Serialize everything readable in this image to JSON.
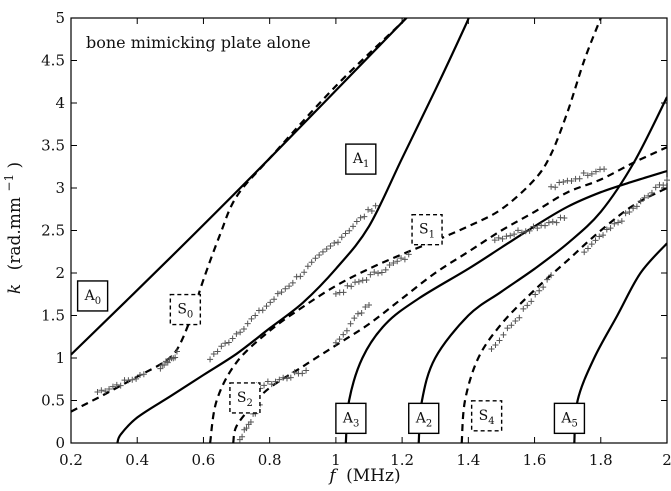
{
  "chart_data": {
    "type": "line",
    "title": "",
    "annotation": "bone mimicking plate alone",
    "xlabel": {
      "symbol": "f",
      "unit": "(MHz)"
    },
    "ylabel": {
      "symbol": "k",
      "unit": "(rad.mm",
      "exp": "−1",
      "close": ")"
    },
    "xlim": [
      0.2,
      2.0
    ],
    "ylim": [
      0,
      5
    ],
    "x_ticks": [
      "0.2",
      "0.4",
      "0.6",
      "0.8",
      "1",
      "1.2",
      "1.4",
      "1.6",
      "1.8",
      "2"
    ],
    "y_ticks": [
      "0",
      "0.5",
      "1",
      "1.5",
      "2",
      "2.5",
      "3",
      "3.5",
      "4",
      "4.5",
      "5"
    ],
    "grid": false,
    "series": [
      {
        "name": "A",
        "sub": "0",
        "style": "solid",
        "label_box": [
          0.22,
          1.73
        ],
        "points": [
          [
            0.2,
            1.04
          ],
          [
            0.5,
            2.18
          ],
          [
            0.8,
            3.35
          ],
          [
            1.2,
            4.95
          ],
          [
            1.21,
            5.0
          ]
        ]
      },
      {
        "name": "S",
        "sub": "0",
        "style": "dashed",
        "label_box": [
          0.5,
          1.57
        ],
        "points": [
          [
            0.2,
            0.37
          ],
          [
            0.3,
            0.57
          ],
          [
            0.4,
            0.78
          ],
          [
            0.48,
            0.95
          ],
          [
            0.52,
            1.1
          ],
          [
            0.56,
            1.45
          ],
          [
            0.6,
            1.92
          ],
          [
            0.65,
            2.45
          ],
          [
            0.7,
            2.9
          ],
          [
            0.8,
            3.35
          ],
          [
            1.0,
            4.2
          ],
          [
            1.2,
            4.95
          ],
          [
            1.21,
            5.0
          ]
        ]
      },
      {
        "name": "A",
        "sub": "1",
        "style": "solid",
        "label_box": [
          1.03,
          3.34
        ],
        "points": [
          [
            0.34,
            0.0
          ],
          [
            0.35,
            0.1
          ],
          [
            0.4,
            0.3
          ],
          [
            0.5,
            0.55
          ],
          [
            0.6,
            0.8
          ],
          [
            0.7,
            1.05
          ],
          [
            0.8,
            1.35
          ],
          [
            0.9,
            1.65
          ],
          [
            1.0,
            2.05
          ],
          [
            1.1,
            2.55
          ],
          [
            1.2,
            3.35
          ],
          [
            1.3,
            4.15
          ],
          [
            1.39,
            4.9
          ],
          [
            1.4,
            5.0
          ]
        ]
      },
      {
        "name": "S",
        "sub": "1",
        "style": "dashed",
        "label_box": [
          1.23,
          2.51
        ],
        "points": [
          [
            0.62,
            0.0
          ],
          [
            0.64,
            0.5
          ],
          [
            0.7,
            0.95
          ],
          [
            0.8,
            1.32
          ],
          [
            0.9,
            1.6
          ],
          [
            1.0,
            1.85
          ],
          [
            1.1,
            2.05
          ],
          [
            1.2,
            2.22
          ],
          [
            1.3,
            2.38
          ],
          [
            1.4,
            2.55
          ],
          [
            1.5,
            2.75
          ],
          [
            1.6,
            3.1
          ],
          [
            1.65,
            3.4
          ],
          [
            1.7,
            3.9
          ],
          [
            1.75,
            4.5
          ],
          [
            1.8,
            5.0
          ]
        ]
      },
      {
        "name": "S",
        "sub": "2",
        "style": "dashed",
        "label_box": [
          0.68,
          0.53
        ],
        "points": [
          [
            0.69,
            0.0
          ],
          [
            0.7,
            0.2
          ],
          [
            0.75,
            0.45
          ],
          [
            0.8,
            0.65
          ],
          [
            0.9,
            0.9
          ],
          [
            1.0,
            1.15
          ],
          [
            1.1,
            1.4
          ],
          [
            1.2,
            1.7
          ],
          [
            1.3,
            2.0
          ],
          [
            1.4,
            2.25
          ],
          [
            1.5,
            2.5
          ],
          [
            1.6,
            2.72
          ],
          [
            1.7,
            2.95
          ],
          [
            1.8,
            3.1
          ],
          [
            1.9,
            3.3
          ],
          [
            2.0,
            3.48
          ]
        ]
      },
      {
        "name": "A",
        "sub": "2",
        "style": "solid",
        "label_box": [
          1.22,
          0.29
        ],
        "points": [
          [
            1.25,
            0.0
          ],
          [
            1.26,
            0.5
          ],
          [
            1.3,
            1.0
          ],
          [
            1.4,
            1.5
          ],
          [
            1.5,
            1.78
          ],
          [
            1.6,
            2.05
          ],
          [
            1.7,
            2.35
          ],
          [
            1.8,
            2.72
          ],
          [
            1.9,
            3.3
          ],
          [
            2.0,
            4.07
          ]
        ]
      },
      {
        "name": "A",
        "sub": "3",
        "style": "solid",
        "label_box": [
          1.0,
          0.29
        ],
        "points": [
          [
            1.03,
            0.0
          ],
          [
            1.04,
            0.5
          ],
          [
            1.08,
            1.0
          ],
          [
            1.15,
            1.4
          ],
          [
            1.25,
            1.7
          ],
          [
            1.4,
            2.05
          ],
          [
            1.5,
            2.3
          ],
          [
            1.6,
            2.55
          ],
          [
            1.7,
            2.78
          ],
          [
            1.8,
            2.95
          ],
          [
            1.9,
            3.08
          ],
          [
            2.0,
            3.2
          ]
        ]
      },
      {
        "name": "S",
        "sub": "4",
        "style": "dashed",
        "label_box": [
          1.41,
          0.32
        ],
        "points": [
          [
            1.38,
            0.0
          ],
          [
            1.39,
            0.5
          ],
          [
            1.43,
            1.0
          ],
          [
            1.5,
            1.4
          ],
          [
            1.6,
            1.8
          ],
          [
            1.7,
            2.15
          ],
          [
            1.8,
            2.5
          ],
          [
            1.9,
            2.8
          ],
          [
            2.0,
            3.0
          ]
        ]
      },
      {
        "name": "A",
        "sub": "5",
        "style": "solid",
        "label_box": [
          1.66,
          0.29
        ],
        "points": [
          [
            1.72,
            0.0
          ],
          [
            1.73,
            0.5
          ],
          [
            1.78,
            1.0
          ],
          [
            1.85,
            1.5
          ],
          [
            1.92,
            2.0
          ],
          [
            2.0,
            2.35
          ]
        ]
      }
    ],
    "measured": {
      "name": "+",
      "clusters": [
        {
          "x": [
            0.28,
            0.42
          ],
          "k": [
            0.6,
            0.8
          ]
        },
        {
          "x": [
            0.47,
            0.52
          ],
          "k": [
            0.9,
            1.05
          ]
        },
        {
          "x": [
            0.76,
            0.91
          ],
          "k": [
            0.65,
            0.85
          ]
        },
        {
          "x": [
            0.71,
            0.77
          ],
          "k": [
            0.05,
            0.45
          ]
        },
        {
          "x": [
            0.62,
            1.12
          ],
          "k": [
            1.0,
            2.8
          ]
        },
        {
          "x": [
            1.0,
            1.22
          ],
          "k": [
            1.75,
            2.2
          ]
        },
        {
          "x": [
            1.0,
            1.1
          ],
          "k": [
            1.2,
            1.65
          ]
        },
        {
          "x": [
            1.48,
            1.69
          ],
          "k": [
            2.4,
            2.65
          ]
        },
        {
          "x": [
            1.65,
            1.81
          ],
          "k": [
            3.0,
            3.25
          ]
        },
        {
          "x": [
            1.47,
            1.65
          ],
          "k": [
            1.1,
            1.95
          ]
        },
        {
          "x": [
            1.75,
            2.0
          ],
          "k": [
            2.25,
            3.1
          ]
        }
      ]
    },
    "colors": {
      "line": "#000000",
      "markers": "#555555"
    }
  }
}
